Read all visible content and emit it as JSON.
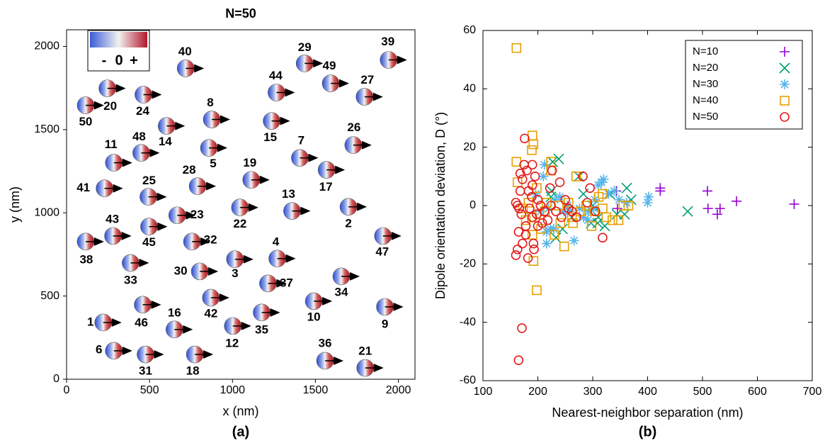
{
  "chart_data": [
    {
      "type": "scatter",
      "title": "N=50",
      "x_label": "x (nm)",
      "y_label": "y (nm)",
      "panel_label": "(a)",
      "xlim": [
        0,
        2100
      ],
      "ylim": [
        0,
        2100
      ],
      "xticks": [
        0,
        500,
        1000,
        1500,
        2000
      ],
      "yticks": [
        0,
        500,
        1000,
        1500,
        2000
      ],
      "colorbar_labels": [
        "-",
        "0",
        "+"
      ],
      "labels": [
        "1",
        "2",
        "3",
        "4",
        "5",
        "6",
        "7",
        "8",
        "9",
        "10",
        "11",
        "12",
        "13",
        "14",
        "15",
        "16",
        "17",
        "18",
        "19",
        "20",
        "21",
        "22",
        "23",
        "24",
        "25",
        "26",
        "27",
        "28",
        "29",
        "30",
        "31",
        "32",
        "33",
        "34",
        "35",
        "36",
        "37",
        "38",
        "39",
        "40",
        "41",
        "42",
        "43",
        "44",
        "45",
        "46",
        "47",
        "48",
        "49",
        "50"
      ],
      "x": [
        221,
        1699,
        1015,
        1270,
        858,
        285,
        1406,
        875,
        1919,
        1490,
        285,
        1002,
        1359,
        603,
        1236,
        650,
        1567,
        773,
        1113,
        246,
        1800,
        1045,
        667,
        463,
        493,
        1728,
        1796,
        790,
        1435,
        803,
        476,
        756,
        386,
        1656,
        1176,
        1558,
        1214,
        115,
        1941,
        718,
        229,
        870,
        280,
        1265,
        497,
        459,
        1907,
        450,
        1592,
        115
      ],
      "y": [
        341,
        1036,
        721,
        725,
        1390,
        171,
        1330,
        1561,
        435,
        469,
        1301,
        320,
        1011,
        1522,
        1552,
        299,
        1258,
        149,
        1198,
        1748,
        68,
        1032,
        985,
        1710,
        1096,
        1407,
        1697,
        1160,
        1898,
        648,
        149,
        827,
        699,
        618,
        401,
        111,
        576,
        827,
        1919,
        1868,
        1147,
        490,
        861,
        1723,
        917,
        448,
        861,
        1360,
        1778,
        1646
      ]
    },
    {
      "type": "scatter",
      "x_label": "Nearest-neighbor separation (nm)",
      "y_label": "Dipole orientation deviation, D (°)",
      "panel_label": "(b)",
      "xlim": [
        100,
        700
      ],
      "ylim": [
        -60,
        60
      ],
      "xticks": [
        100,
        200,
        300,
        400,
        500,
        600,
        700
      ],
      "yticks": [
        -60,
        -40,
        -20,
        0,
        20,
        40,
        60
      ],
      "legend": "upper right",
      "series": [
        {
          "name": "N=10",
          "color": "#9400d3",
          "marker": "plus",
          "x": [
            343,
            345,
            423,
            423,
            509,
            510,
            527,
            532,
            562,
            667
          ],
          "y": [
            5,
            -1,
            6,
            5,
            5,
            -1,
            -3,
            -1,
            1.5,
            0.5
          ]
        },
        {
          "name": "N=20",
          "color": "#009e73",
          "marker": "cross",
          "x": [
            238,
            227,
            233,
            225,
            275,
            262,
            283,
            297,
            310,
            309,
            322,
            331,
            344,
            358,
            362,
            370,
            473,
            224,
            245,
            300
          ],
          "y": [
            16,
            15,
            -11,
            5,
            10,
            -4,
            4,
            -6,
            -4,
            -6,
            -7,
            4,
            -3,
            -3,
            6,
            2,
            -2,
            3,
            -8,
            0
          ]
        },
        {
          "name": "N=30",
          "color": "#56b4e9",
          "marker": "star",
          "x": [
            212,
            216,
            223,
            229,
            216,
            196,
            205,
            210,
            220,
            231,
            240,
            247,
            258,
            266,
            276,
            283,
            291,
            302,
            310,
            316,
            320,
            329,
            339,
            348,
            362,
            400,
            402,
            304,
            292,
            254
          ],
          "y": [
            14,
            -13,
            -8,
            -8,
            -9,
            4,
            -2,
            10,
            -1,
            2,
            3,
            -2,
            -2,
            -12,
            -1,
            -4,
            -5,
            -1,
            7,
            8,
            9,
            4,
            5,
            2,
            1,
            1,
            3,
            2,
            -2,
            0
          ]
        },
        {
          "name": "N=40",
          "color": "#e69f00",
          "marker": "square",
          "x": [
            161,
            161,
            190,
            192,
            189,
            163,
            173,
            183,
            189,
            192,
            198,
            190,
            198,
            203,
            213,
            216,
            224,
            224,
            230,
            238,
            248,
            256,
            262,
            270,
            278,
            288,
            298,
            303,
            311,
            318,
            325,
            336,
            347,
            356,
            365,
            318,
            178,
            206,
            241,
            264
          ],
          "y": [
            54,
            15,
            24,
            21,
            19,
            8,
            -1,
            1,
            -4,
            -19,
            -29,
            -10,
            6,
            -3,
            -2,
            1,
            15,
            12,
            -10,
            0,
            -14,
            1,
            -4,
            10,
            -2,
            0,
            -7,
            -2,
            3,
            4,
            -4,
            -5,
            -5,
            0,
            0,
            -1,
            -5,
            -8,
            -6,
            -6
          ]
        },
        {
          "name": "N=50",
          "color": "#e41a1c",
          "marker": "circle",
          "x": [
            176,
            171,
            165,
            160,
            163,
            165,
            166,
            160,
            163,
            168,
            168,
            170,
            172,
            175,
            178,
            180,
            183,
            185,
            189,
            192,
            193,
            190,
            195,
            198,
            190,
            178,
            182,
            172,
            200,
            205,
            208,
            212,
            218,
            222,
            224,
            226,
            233,
            240,
            243,
            250,
            256,
            262,
            270,
            282,
            290,
            295,
            305,
            318,
            190,
            200
          ],
          "y": [
            23,
            -42,
            -53,
            -17,
            -15,
            -9,
            -1,
            1,
            0,
            5,
            11,
            -3,
            9,
            14,
            -10,
            12,
            5,
            -1,
            3,
            -13,
            -15,
            14,
            10,
            -3,
            7,
            -7,
            -18,
            -13,
            2,
            0,
            -6,
            -2,
            -5,
            6,
            0,
            12,
            -2,
            8,
            -4,
            2,
            -1,
            -2,
            -4,
            10,
            1,
            6,
            -2,
            -11,
            -4,
            -7
          ]
        }
      ]
    }
  ]
}
